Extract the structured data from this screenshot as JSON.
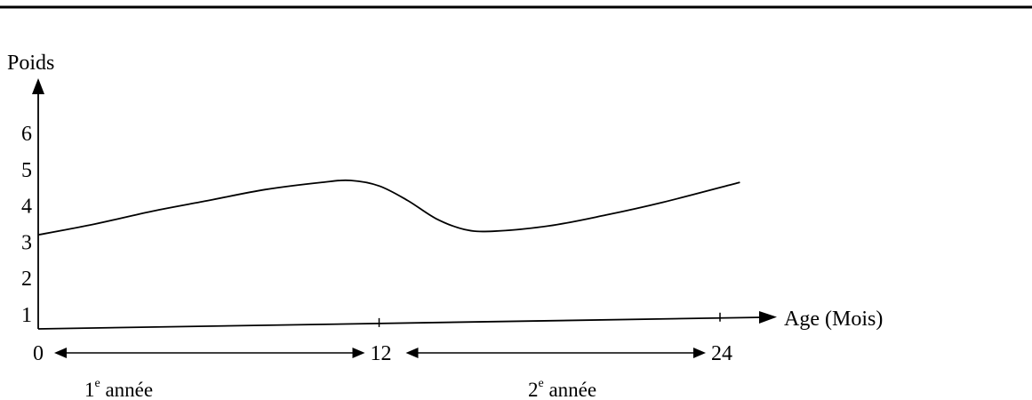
{
  "chart_data": {
    "type": "line",
    "title": "",
    "ylabel": "Poids",
    "xlabel": "Age (Mois)",
    "xlim": [
      0,
      24
    ],
    "ylim": [
      1,
      6
    ],
    "xticks": [
      "0",
      "12",
      "24"
    ],
    "yticks": [
      "1",
      "2",
      "3",
      "4",
      "5",
      "6"
    ],
    "grid": false,
    "legend": "none",
    "series": [
      {
        "x": [
          0,
          2,
          4,
          6,
          8,
          10,
          11,
          12,
          13,
          14,
          15,
          16,
          18,
          20,
          22,
          24.7
        ],
        "y": [
          3.2,
          3.5,
          3.85,
          4.15,
          4.45,
          4.65,
          4.7,
          4.55,
          4.15,
          3.65,
          3.35,
          3.3,
          3.45,
          3.75,
          4.1,
          4.65
        ]
      }
    ],
    "periods": [
      {
        "from": 0,
        "to": 12,
        "label_base": "1",
        "label_sup": "e",
        "label_rest": " année"
      },
      {
        "from": 12,
        "to": 24,
        "label_base": "2",
        "label_sup": "e",
        "label_rest": " année"
      }
    ]
  }
}
